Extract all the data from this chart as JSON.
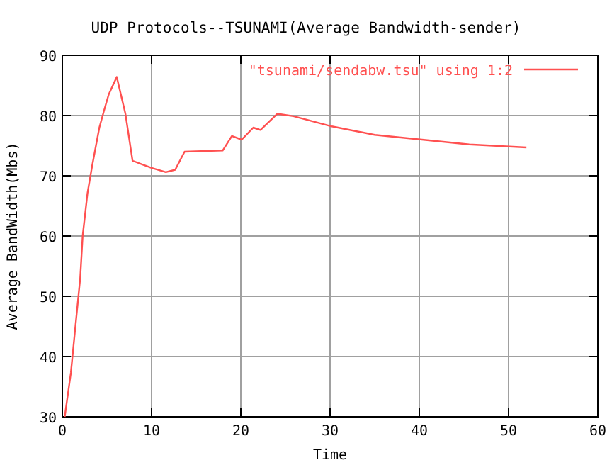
{
  "chart_data": {
    "type": "line",
    "title": "UDP Protocols--TSUNAMI(Average Bandwidth-sender)",
    "xlabel": "Time",
    "ylabel": "Average BandWidth(Mbs)",
    "xlim": [
      0,
      60
    ],
    "xticks": [
      0,
      10,
      20,
      30,
      40,
      50,
      60
    ],
    "ylim": [
      30,
      90
    ],
    "yticks": [
      30,
      40,
      50,
      60,
      70,
      80,
      90
    ],
    "grid": true,
    "legend": "top right",
    "line_style": "solid",
    "marker": "none",
    "series": [
      {
        "name": "\"tsunami/sendabw.tsu\" using 1:2",
        "color": "#ff5050",
        "x": [
          0.27,
          0.96,
          1.48,
          2.0,
          2.28,
          2.82,
          3.35,
          4.15,
          4.67,
          5.2,
          6.1,
          7.07,
          7.87,
          8.93,
          10,
          11.6,
          12.65,
          13.7,
          17.97,
          19,
          20.1,
          21.4,
          22.2,
          24.1,
          25.9,
          30.2,
          35,
          40.3,
          45.6,
          52
        ],
        "values": [
          30,
          37.3,
          45.2,
          52.9,
          60,
          67.1,
          71.7,
          78,
          80.8,
          83.5,
          86.4,
          80.3,
          72.5,
          71.9,
          71.3,
          70.6,
          71,
          74,
          74.2,
          76.6,
          76,
          78,
          77.6,
          80.3,
          79.9,
          78.2,
          76.8,
          76,
          75.2,
          74.7
        ]
      }
    ]
  }
}
